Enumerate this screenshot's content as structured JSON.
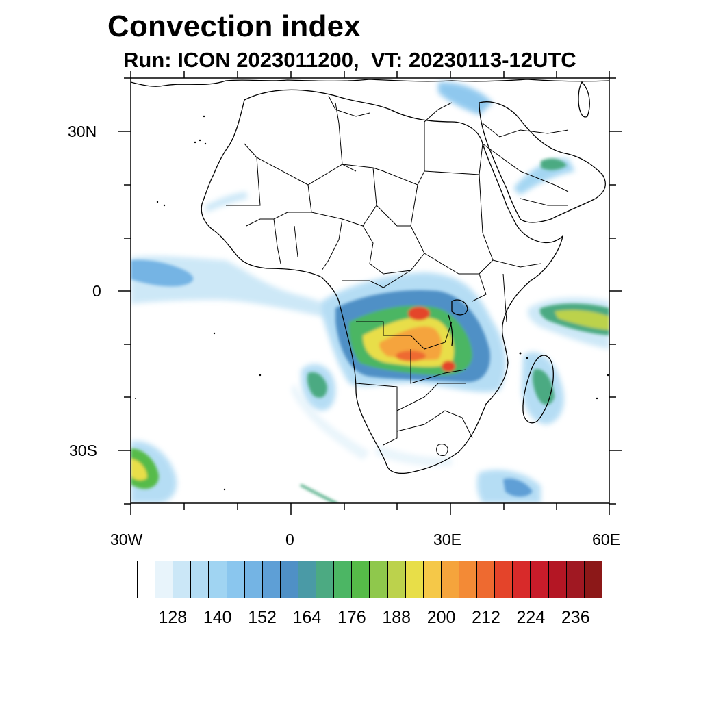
{
  "title": "Convection index",
  "subtitle": "Run: ICON 2023011200,  VT: 20230113-12UTC",
  "axes": {
    "lat_labels": [
      "30N",
      "0",
      "30S"
    ],
    "lon_labels": [
      "30W",
      "0",
      "30E",
      "60E"
    ]
  },
  "colorbar": {
    "colors": [
      "#ffffff",
      "#e8f4fb",
      "#cbe7f7",
      "#b2dcf4",
      "#a0d4f2",
      "#8ac6ee",
      "#74b4e4",
      "#5e9fd6",
      "#4f90c6",
      "#4a9aa6",
      "#4caa82",
      "#4cb664",
      "#56bb48",
      "#8fc84c",
      "#bcd24c",
      "#e8de48",
      "#f5c848",
      "#f5a43c",
      "#f38a36",
      "#ee6a30",
      "#e4442a",
      "#d82a2a",
      "#c81c2a",
      "#b41624",
      "#a01822",
      "#8c1818"
    ],
    "tick_labels": [
      "128",
      "140",
      "152",
      "164",
      "176",
      "188",
      "200",
      "212",
      "224",
      "236"
    ]
  },
  "colors": {
    "frame": "#000000",
    "coast": "#000000",
    "land": "#ffffff"
  }
}
